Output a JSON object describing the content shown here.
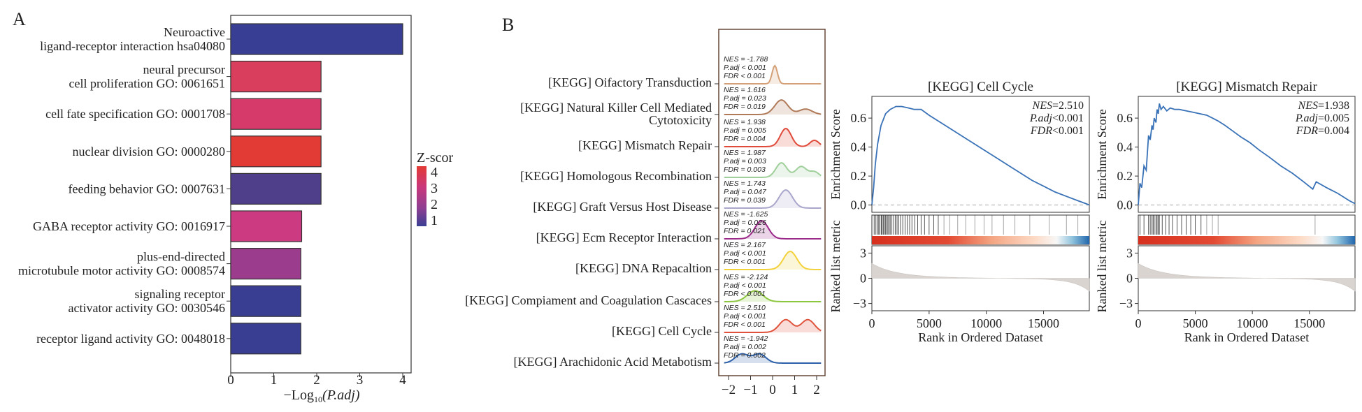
{
  "panel_a": {
    "letter": "A",
    "legend_title": "Z-scor",
    "legend_ticks": [
      "4",
      "3",
      "2",
      "1"
    ],
    "legend_colors": [
      "#e33a35",
      "#c9387c",
      "#8e3f92",
      "#3a3f94"
    ]
  },
  "panel_b": {
    "letter": "B"
  },
  "chart_data": [
    {
      "type": "bar",
      "orientation": "horizontal",
      "xlabel_main": "−Log",
      "xlabel_sub": "10",
      "xlabel_var": "(P.adj)",
      "xlim": [
        0,
        4.2
      ],
      "xticks": [
        "0",
        "1",
        "2",
        "3",
        "4"
      ],
      "categories": [
        [
          "Neuroactive",
          "ligand-receptor interaction hsa04080"
        ],
        [
          "neural precursor",
          "cell proliferation GO: 0061651"
        ],
        [
          "cell fate specification GO: 0001708"
        ],
        [
          "nuclear division GO: 0000280"
        ],
        [
          "feeding behavior GO: 0007631"
        ],
        [
          "GABA receptor activity GO: 0016917"
        ],
        [
          "plus-end-directed",
          "microtubule motor activity GO: 0008574"
        ],
        [
          "signaling receptor",
          "activator activity GO: 0030546"
        ],
        [
          "receptor ligand activity GO: 0048018"
        ]
      ],
      "values": [
        4.0,
        2.1,
        2.1,
        2.1,
        2.1,
        1.65,
        1.63,
        1.63,
        1.63
      ],
      "zscore": [
        1.1,
        3.9,
        3.3,
        4.0,
        1.5,
        2.8,
        2.4,
        1.2,
        1.1
      ],
      "colors": [
        "#373e93",
        "#d93f5d",
        "#d63a6b",
        "#e23a35",
        "#4f3f8a",
        "#cc3a82",
        "#9b3c8c",
        "#393e93",
        "#393e93"
      ]
    },
    {
      "type": "ridgeline",
      "xticks": [
        "−2",
        "−1",
        "0",
        "1",
        "2"
      ],
      "xlim": [
        -2.3,
        2.3
      ],
      "terms": [
        {
          "label": "[KEGG] Oifactory Transduction",
          "stats": [
            "NES = -1.788",
            "P.adj < 0.001",
            "FDR < 0.001"
          ],
          "color": "#d4a077",
          "center": 0.1,
          "peaks": [
            [
              0.1,
              1.0,
              0.12
            ]
          ]
        },
        {
          "label": "[KEGG] Natural Killer Cell Mediated",
          "label2": "Cytotoxicity",
          "stats": [
            "NES = 1.616",
            "P.adj = 0.023",
            "FDR = 0.019"
          ],
          "color": "#b07a58",
          "center": 0.4,
          "peaks": [
            [
              0.4,
              0.8,
              0.3
            ],
            [
              1.5,
              0.3,
              0.3
            ]
          ]
        },
        {
          "label": "[KEGG] Mismatch Repair",
          "stats": [
            "NES = 1.938",
            "P.adj = 0.005",
            "FDR = 0.004"
          ],
          "color": "#e04a3a",
          "center": 0.6,
          "peaks": [
            [
              0.6,
              1.0,
              0.25
            ],
            [
              1.9,
              0.35,
              0.2
            ]
          ]
        },
        {
          "label": "[KEGG] Homologous Recombination",
          "stats": [
            "NES = 1.987",
            "P.adj = 0.003",
            "FDR = 0.003"
          ],
          "color": "#9fcf9a",
          "center": 0.4,
          "peaks": [
            [
              0.4,
              0.8,
              0.25
            ],
            [
              1.3,
              0.6,
              0.25
            ],
            [
              1.9,
              0.3,
              0.2
            ]
          ]
        },
        {
          "label": "[KEGG] Graft Versus Host Disease",
          "stats": [
            "NES = 1.743",
            "P.adj = 0.047",
            "FDR = 0.039"
          ],
          "color": "#a9a6cc",
          "center": 0.6,
          "peaks": [
            [
              0.6,
              1.0,
              0.3
            ]
          ]
        },
        {
          "label": "[KEGG] Ecm Receptor Interaction",
          "stats": [
            "NES = -1.625",
            "P.adj = 0.026",
            "FDR = 0.021"
          ],
          "color": "#9b2a8a",
          "center": -0.5,
          "peaks": [
            [
              -0.5,
              1.0,
              0.3
            ]
          ]
        },
        {
          "label": "[KEGG] DNA Repacaltion",
          "stats": [
            "NES = 2.167",
            "P.adj < 0.001",
            "FDR < 0.001"
          ],
          "color": "#f2d13a",
          "center": 0.8,
          "peaks": [
            [
              0.8,
              1.0,
              0.3
            ]
          ]
        },
        {
          "label": "[KEGG] Compiament and Coagulation Cascaces",
          "stats": [
            "NES = -2.124",
            "P.adj < 0.001",
            "FDR < 0.001"
          ],
          "color": "#8cc63e",
          "center": -0.8,
          "peaks": [
            [
              -0.8,
              0.6,
              0.35
            ]
          ]
        },
        {
          "label": "[KEGG] Cell Cycle",
          "stats": [
            "NES = 2.510",
            "P.adj < 0.001",
            "FDR < 0.001"
          ],
          "color": "#e0523c",
          "center": 1.0,
          "peaks": [
            [
              0.6,
              0.7,
              0.3
            ],
            [
              1.6,
              0.7,
              0.3
            ]
          ]
        },
        {
          "label": "[KEGG] Arachidonic Acid Metabotism",
          "stats": [
            "NES = -1.942",
            "P.adj = 0.002",
            "FDR = 0.002"
          ],
          "color": "#2b5fa8",
          "center": -1.0,
          "peaks": [
            [
              -1.4,
              0.5,
              0.3
            ],
            [
              -0.6,
              0.5,
              0.3
            ]
          ]
        }
      ]
    },
    {
      "type": "line",
      "title": "[KEGG] Cell Cycle",
      "ylabel": "Enrichment Score",
      "ylabel2": "Ranked list metric",
      "xlabel": "Rank in Ordered Dataset",
      "xlim": [
        0,
        19000
      ],
      "ylim": [
        -0.05,
        0.75
      ],
      "xticks": [
        "0",
        "5000",
        "10000",
        "15000"
      ],
      "yticks": [
        "0.0",
        "0.2",
        "0.4",
        "0.6"
      ],
      "yticks2": [
        "3",
        "0",
        "−3"
      ],
      "stats": [
        [
          "NES",
          "=2.510"
        ],
        [
          "P.adj",
          "<0.001"
        ],
        [
          "FDR",
          "<0.001"
        ]
      ],
      "x": [
        0,
        150,
        300,
        500,
        800,
        1200,
        1600,
        2100,
        2600,
        3200,
        3700,
        4300,
        5000,
        6000,
        7000,
        8000,
        9000,
        10000,
        11000,
        12000,
        13000,
        14000,
        15000,
        16000,
        17000,
        18000,
        18700,
        19000
      ],
      "y": [
        0.0,
        0.12,
        0.28,
        0.42,
        0.55,
        0.63,
        0.66,
        0.68,
        0.68,
        0.67,
        0.66,
        0.66,
        0.62,
        0.57,
        0.52,
        0.47,
        0.42,
        0.37,
        0.32,
        0.27,
        0.22,
        0.17,
        0.13,
        0.09,
        0.06,
        0.03,
        0.01,
        0.0
      ],
      "hits": [
        200,
        350,
        500,
        600,
        700,
        820,
        900,
        1000,
        1100,
        1200,
        1300,
        1400,
        1500,
        1600,
        1750,
        1900,
        2050,
        2200,
        2350,
        2500,
        2700,
        2900,
        3100,
        3300,
        3500,
        3750,
        4000,
        4300,
        4600,
        5000,
        5400,
        5800,
        6300,
        6800,
        7500,
        8200,
        9000,
        9800,
        10500,
        11500,
        12500,
        13800,
        15500,
        17000,
        18000
      ]
    },
    {
      "type": "line",
      "title": "[KEGG] Mismatch Repair",
      "ylabel": "Enrichment Score",
      "ylabel2": "Ranked list metric",
      "xlabel": "Rank in Ordered Dataset",
      "xlim": [
        0,
        19000
      ],
      "ylim": [
        -0.05,
        0.75
      ],
      "xticks": [
        "0",
        "5000",
        "10000",
        "15000"
      ],
      "yticks": [
        "0.0",
        "0.2",
        "0.4",
        "0.6"
      ],
      "yticks2": [
        "3",
        "0",
        "−3"
      ],
      "stats": [
        [
          "NES",
          "=1.938"
        ],
        [
          "P.adj",
          "=0.005"
        ],
        [
          "FDR",
          "=0.004"
        ]
      ],
      "x": [
        0,
        150,
        300,
        500,
        700,
        900,
        1050,
        1200,
        1300,
        1400,
        1550,
        1650,
        1750,
        1850,
        2000,
        2200,
        2500,
        2800,
        3200,
        3600,
        4200,
        4800,
        5400,
        6000,
        6500,
        7000,
        7600,
        8300,
        9000,
        9800,
        10600,
        11500,
        12500,
        13500,
        14500,
        15300,
        15600,
        16500,
        17500,
        18500,
        19000
      ],
      "y": [
        0.0,
        0.15,
        0.12,
        0.27,
        0.24,
        0.48,
        0.45,
        0.55,
        0.52,
        0.6,
        0.57,
        0.66,
        0.63,
        0.7,
        0.66,
        0.68,
        0.65,
        0.67,
        0.66,
        0.66,
        0.65,
        0.64,
        0.63,
        0.62,
        0.6,
        0.58,
        0.55,
        0.51,
        0.47,
        0.43,
        0.38,
        0.33,
        0.27,
        0.22,
        0.16,
        0.11,
        0.16,
        0.12,
        0.08,
        0.03,
        0.01
      ],
      "hits": [
        150,
        500,
        900,
        1050,
        1200,
        1300,
        1400,
        1550,
        1650,
        1750,
        1850,
        2100,
        2400,
        2700,
        3000,
        3400,
        3800,
        4200,
        4600,
        5000,
        5500,
        6000,
        6500,
        7000,
        15500
      ]
    }
  ]
}
